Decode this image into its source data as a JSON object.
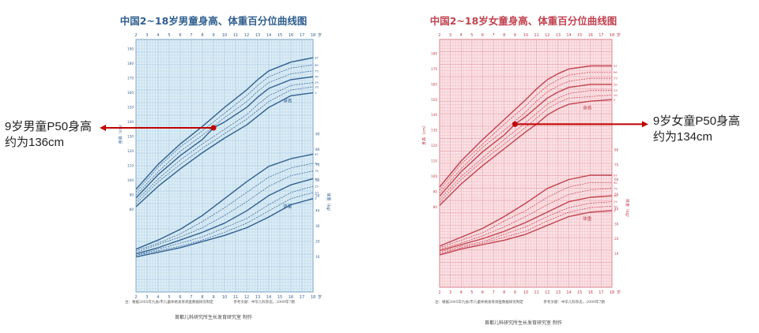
{
  "boys": {
    "title": "中国2~18岁男童身高、体重百分位曲线图",
    "color": "#2f5f8f",
    "grid_color": "#9cc2dd",
    "bg_color": "#dcedf6",
    "height_label": "身高",
    "weight_label": "体重",
    "footnote": "注：根据2005年九省/市儿童体格发育调查数据研究制定",
    "footnote_ref": "参考文献：中华儿科杂志，2009年7期",
    "credit": "首都儿科研究所生长发育研究室 制作",
    "callout_line1": "9岁男童P50身高",
    "callout_line2": "约为136cm"
  },
  "girls": {
    "title": "中国2~18岁女童身高、体重百分位曲线图",
    "color": "#c0424f",
    "grid_color": "#e69aa4",
    "bg_color": "#fbe3e6",
    "height_label": "身高",
    "weight_label": "体重",
    "footnote": "注：根据2005年九省/市儿童体格发育调查数据研究制定",
    "footnote_ref": "参考文献：中华儿科杂志，2009年7期",
    "credit": "首都儿科研究所生长发育研究室 制作",
    "callout_line1": "9岁女童P50身高",
    "callout_line2": "约为134cm"
  },
  "axis": {
    "age_ticks": [
      "2",
      "3",
      "4",
      "5",
      "6",
      "7",
      "8",
      "9",
      "10",
      "11",
      "12",
      "13",
      "14",
      "15",
      "16",
      "17",
      "18"
    ],
    "age_unit": "岁",
    "height_axis_label": "身高（cm）",
    "weight_axis_label": "体重（kg）"
  },
  "annotation_color": "#c00000",
  "chart_data": [
    {
      "type": "line",
      "title": "中国2~18岁男童身高、体重百分位曲线图",
      "x_label": "岁",
      "xlim": [
        2,
        18
      ],
      "height_ylim": [
        75,
        190
      ],
      "weight_ylim": [
        0,
        90
      ],
      "height_series": [
        {
          "name": "P3",
          "x": [
            2,
            4,
            6,
            8,
            10,
            12,
            13,
            14,
            16,
            18
          ],
          "values": [
            82,
            96,
            108,
            119,
            129,
            138,
            144,
            150,
            158,
            160
          ]
        },
        {
          "name": "P10",
          "x": [
            2,
            4,
            6,
            8,
            10,
            12,
            13,
            14,
            16,
            18
          ],
          "values": [
            84,
            99,
            111,
            122,
            132,
            142,
            148,
            154,
            162,
            164
          ]
        },
        {
          "name": "P25",
          "x": [
            2,
            4,
            6,
            8,
            10,
            12,
            13,
            14,
            16,
            18
          ],
          "values": [
            86,
            101,
            114,
            125,
            135,
            145,
            152,
            158,
            165,
            167
          ]
        },
        {
          "name": "P50",
          "x": [
            2,
            4,
            6,
            8,
            9,
            10,
            12,
            13,
            14,
            16,
            18
          ],
          "values": [
            88,
            104,
            117,
            128,
            136,
            140,
            150,
            157,
            163,
            169,
            171
          ]
        },
        {
          "name": "P75",
          "x": [
            2,
            4,
            6,
            8,
            10,
            12,
            13,
            14,
            16,
            18
          ],
          "values": [
            90,
            106,
            120,
            131,
            143,
            154,
            161,
            167,
            173,
            175
          ]
        },
        {
          "name": "P90",
          "x": [
            2,
            4,
            6,
            8,
            10,
            12,
            13,
            14,
            16,
            18
          ],
          "values": [
            92,
            109,
            123,
            134,
            146,
            158,
            165,
            171,
            177,
            179
          ]
        },
        {
          "name": "P97",
          "x": [
            2,
            4,
            6,
            8,
            10,
            12,
            13,
            14,
            16,
            18
          ],
          "values": [
            94,
            111,
            125,
            137,
            150,
            162,
            169,
            175,
            181,
            184
          ]
        }
      ],
      "weight_series": [
        {
          "name": "P3",
          "x": [
            2,
            4,
            6,
            8,
            10,
            12,
            14,
            16,
            18
          ],
          "values": [
            10,
            13,
            16,
            20,
            24,
            29,
            36,
            44,
            48
          ]
        },
        {
          "name": "P10",
          "x": [
            2,
            4,
            6,
            8,
            10,
            12,
            14,
            16,
            18
          ],
          "values": [
            11,
            14,
            17,
            21,
            26,
            32,
            40,
            48,
            52
          ]
        },
        {
          "name": "P25",
          "x": [
            2,
            4,
            6,
            8,
            10,
            12,
            14,
            16,
            18
          ],
          "values": [
            11,
            15,
            19,
            23,
            29,
            35,
            44,
            52,
            56
          ]
        },
        {
          "name": "P50",
          "x": [
            2,
            4,
            6,
            8,
            10,
            12,
            14,
            16,
            18
          ],
          "values": [
            12,
            16,
            21,
            26,
            32,
            40,
            50,
            57,
            61
          ]
        },
        {
          "name": "P75",
          "x": [
            2,
            4,
            6,
            8,
            10,
            12,
            14,
            16,
            18
          ],
          "values": [
            13,
            18,
            23,
            29,
            37,
            46,
            56,
            63,
            66
          ]
        },
        {
          "name": "P90",
          "x": [
            2,
            4,
            6,
            8,
            10,
            12,
            14,
            16,
            18
          ],
          "values": [
            14,
            19,
            25,
            33,
            42,
            52,
            62,
            68,
            71
          ]
        },
        {
          "name": "P97",
          "x": [
            2,
            4,
            6,
            8,
            10,
            12,
            14,
            16,
            18
          ],
          "values": [
            15,
            21,
            28,
            37,
            48,
            59,
            69,
            74,
            77
          ]
        }
      ],
      "annotation": {
        "age": 9,
        "height": 136,
        "text": "9岁男童P50身高 约为136cm"
      }
    },
    {
      "type": "line",
      "title": "中国2~18岁女童身高、体重百分位曲线图",
      "x_label": "岁",
      "xlim": [
        2,
        18
      ],
      "height_ylim": [
        75,
        180
      ],
      "weight_ylim": [
        0,
        80
      ],
      "height_series": [
        {
          "name": "P3",
          "x": [
            2,
            4,
            6,
            8,
            10,
            11,
            12,
            13,
            14,
            16,
            18
          ],
          "values": [
            81,
            95,
            107,
            118,
            129,
            134,
            140,
            144,
            147,
            149,
            150
          ]
        },
        {
          "name": "P10",
          "x": [
            2,
            4,
            6,
            8,
            10,
            11,
            12,
            13,
            14,
            16,
            18
          ],
          "values": [
            83,
            98,
            110,
            121,
            132,
            138,
            144,
            148,
            151,
            152,
            153
          ]
        },
        {
          "name": "P25",
          "x": [
            2,
            4,
            6,
            8,
            10,
            11,
            12,
            13,
            14,
            16,
            18
          ],
          "values": [
            85,
            100,
            112,
            124,
            135,
            141,
            147,
            151,
            154,
            156,
            156
          ]
        },
        {
          "name": "P50",
          "x": [
            2,
            4,
            6,
            8,
            9,
            10,
            11,
            12,
            13,
            14,
            16,
            18
          ],
          "values": [
            87,
            103,
            116,
            127,
            134,
            139,
            145,
            151,
            155,
            158,
            160,
            160
          ]
        },
        {
          "name": "P75",
          "x": [
            2,
            4,
            6,
            8,
            10,
            11,
            12,
            13,
            14,
            16,
            18
          ],
          "values": [
            89,
            105,
            119,
            130,
            142,
            149,
            155,
            159,
            162,
            164,
            164
          ]
        },
        {
          "name": "P90",
          "x": [
            2,
            4,
            6,
            8,
            10,
            11,
            12,
            13,
            14,
            16,
            18
          ],
          "values": [
            91,
            108,
            121,
            134,
            146,
            153,
            159,
            163,
            166,
            168,
            168
          ]
        },
        {
          "name": "P97",
          "x": [
            2,
            4,
            6,
            8,
            10,
            11,
            12,
            13,
            14,
            16,
            18
          ],
          "values": [
            93,
            110,
            124,
            137,
            150,
            157,
            163,
            167,
            170,
            172,
            172
          ]
        }
      ],
      "weight_series": [
        {
          "name": "P3",
          "x": [
            2,
            4,
            6,
            8,
            10,
            12,
            14,
            16,
            18
          ],
          "values": [
            9,
            13,
            16,
            19,
            23,
            29,
            35,
            38,
            39
          ]
        },
        {
          "name": "P10",
          "x": [
            2,
            4,
            6,
            8,
            10,
            12,
            14,
            16,
            18
          ],
          "values": [
            10,
            14,
            17,
            21,
            25,
            32,
            38,
            41,
            42
          ]
        },
        {
          "name": "P25",
          "x": [
            2,
            4,
            6,
            8,
            10,
            12,
            14,
            16,
            18
          ],
          "values": [
            11,
            15,
            18,
            23,
            28,
            35,
            41,
            44,
            45
          ]
        },
        {
          "name": "P50",
          "x": [
            2,
            4,
            6,
            8,
            10,
            12,
            14,
            16,
            18
          ],
          "values": [
            12,
            16,
            20,
            25,
            31,
            38,
            45,
            48,
            49
          ]
        },
        {
          "name": "P75",
          "x": [
            2,
            4,
            6,
            8,
            10,
            12,
            14,
            16,
            18
          ],
          "values": [
            13,
            17,
            22,
            28,
            35,
            43,
            50,
            53,
            54
          ]
        },
        {
          "name": "P90",
          "x": [
            2,
            4,
            6,
            8,
            10,
            12,
            14,
            16,
            18
          ],
          "values": [
            14,
            19,
            24,
            32,
            39,
            48,
            55,
            58,
            58
          ]
        },
        {
          "name": "P97",
          "x": [
            2,
            4,
            6,
            8,
            10,
            12,
            14,
            16,
            18
          ],
          "values": [
            15,
            21,
            27,
            35,
            44,
            54,
            60,
            63,
            63
          ]
        }
      ],
      "annotation": {
        "age": 9,
        "height": 134,
        "text": "9岁女童P50身高 约为134cm"
      }
    }
  ]
}
